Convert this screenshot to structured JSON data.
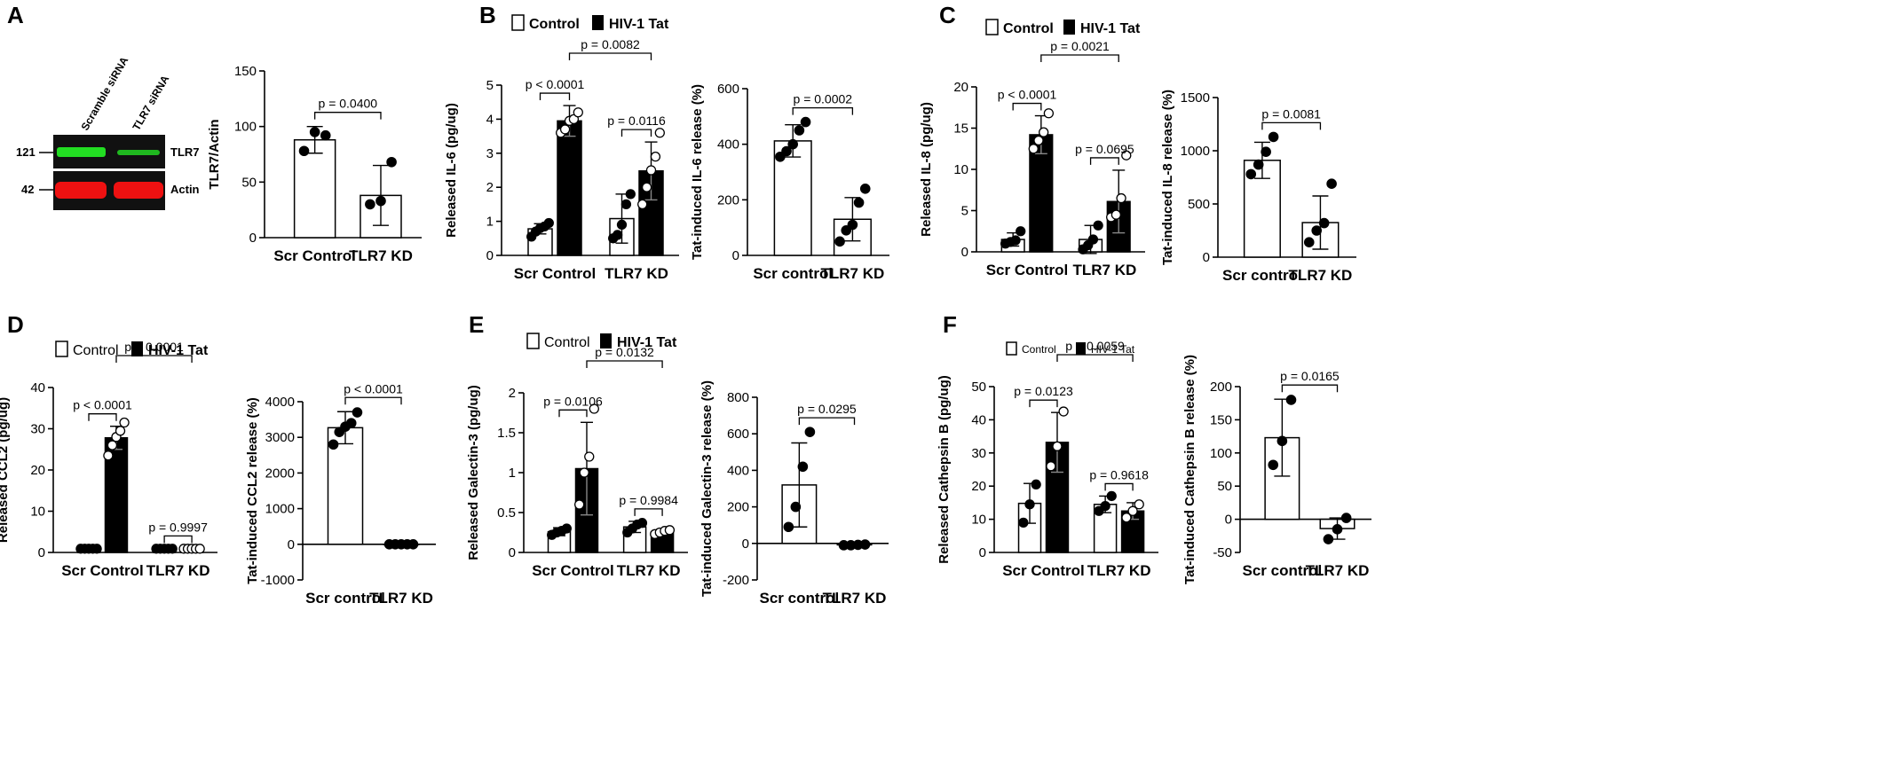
{
  "panels": {
    "A": {
      "letter": "A"
    },
    "B": {
      "letter": "B"
    },
    "C": {
      "letter": "C"
    },
    "D": {
      "letter": "D"
    },
    "E": {
      "letter": "E"
    },
    "F": {
      "letter": "F"
    }
  },
  "legend": {
    "control": "Control",
    "tat": "HIV-1 Tat"
  },
  "western_blot": {
    "lane_labels": [
      "Scramble siRNA",
      "TLR7 siRNA"
    ],
    "markers": [
      "121",
      "42"
    ],
    "band_labels": [
      "TLR7",
      "Actin"
    ],
    "colors": {
      "tlr7_band": "#22dd22",
      "actin_band": "#ee1111",
      "background": "#111111"
    }
  },
  "chart_data": [
    {
      "id": "A",
      "type": "bar",
      "ylabel": "TLR7/Actin",
      "ylim": [
        0,
        150
      ],
      "yticks": [
        0,
        50,
        100,
        150
      ],
      "categories": [
        "Scr Control",
        "TLR7 KD"
      ],
      "values": [
        88,
        38
      ],
      "errors": [
        12,
        27
      ],
      "points": [
        [
          78,
          95,
          92
        ],
        [
          30,
          33,
          68
        ]
      ],
      "point_fill": "filled",
      "sig": [
        {
          "label": "p = 0.0400",
          "from": 0,
          "to": 1
        }
      ]
    },
    {
      "id": "B1",
      "type": "bar",
      "ylabel": "Released IL-6 (pg/ug)",
      "ylim": [
        0,
        5
      ],
      "yticks": [
        0,
        1,
        2,
        3,
        4,
        5
      ],
      "groups": [
        "Scr Control",
        "TLR7 KD"
      ],
      "series": [
        {
          "name": "Control",
          "values": [
            0.78,
            1.08
          ],
          "errors": [
            0.15,
            0.72
          ],
          "points": [
            [
              0.55,
              0.7,
              0.8,
              0.85,
              0.95
            ],
            [
              0.5,
              0.6,
              0.9,
              1.5,
              1.8
            ]
          ]
        },
        {
          "name": "HIV-1 Tat",
          "values": [
            3.95,
            2.48
          ],
          "errors": [
            0.45,
            0.85
          ],
          "points": [
            [
              3.6,
              3.7,
              3.95,
              4.0,
              4.2
            ],
            [
              1.5,
              2.0,
              2.5,
              2.9,
              3.6
            ]
          ]
        }
      ],
      "sig": [
        {
          "label": "p < 0.0001",
          "from": "0-0",
          "to": "0-1",
          "level": 1
        },
        {
          "label": "p = 0.0116",
          "from": "1-0",
          "to": "1-1",
          "level": 1
        },
        {
          "label": "p = 0.0082",
          "from": "0-1",
          "to": "1-1",
          "level": 2
        }
      ]
    },
    {
      "id": "B2",
      "type": "bar",
      "ylabel": "Tat-induced IL-6 release (%)",
      "ylim": [
        0,
        600
      ],
      "yticks": [
        0,
        200,
        400,
        600
      ],
      "categories": [
        "Scr control",
        "TLR7 KD"
      ],
      "values": [
        412,
        130
      ],
      "errors": [
        58,
        78
      ],
      "points": [
        [
          355,
          375,
          400,
          450,
          480
        ],
        [
          50,
          90,
          110,
          190,
          240
        ]
      ],
      "point_fill": "filled",
      "sig": [
        {
          "label": "p = 0.0002",
          "from": 0,
          "to": 1
        }
      ]
    },
    {
      "id": "C1",
      "type": "bar",
      "ylabel": "Released IL-8 (pg/ug)",
      "ylim": [
        0,
        20
      ],
      "yticks": [
        0,
        5,
        10,
        15,
        20
      ],
      "groups": [
        "Scr Control",
        "TLR7 KD"
      ],
      "series": [
        {
          "name": "Control",
          "values": [
            1.5,
            1.5
          ],
          "errors": [
            0.8,
            1.7
          ],
          "points": [
            [
              1.0,
              1.2,
              1.4,
              2.5
            ],
            [
              0.3,
              0.8,
              1.5,
              3.2
            ]
          ]
        },
        {
          "name": "HIV-1 Tat",
          "values": [
            14.2,
            6.1
          ],
          "errors": [
            2.3,
            3.8
          ],
          "points": [
            [
              12.5,
              13.5,
              14.5,
              16.8
            ],
            [
              4.2,
              4.5,
              6.5,
              11.7
            ]
          ]
        }
      ],
      "sig": [
        {
          "label": "p < 0.0001",
          "from": "0-0",
          "to": "0-1",
          "level": 1
        },
        {
          "label": "p = 0.0695",
          "from": "1-0",
          "to": "1-1",
          "level": 1
        },
        {
          "label": "p = 0.0021",
          "from": "0-1",
          "to": "1-1",
          "level": 2
        }
      ]
    },
    {
      "id": "C2",
      "type": "bar",
      "ylabel": "Tat-induced IL-8 release (%)",
      "ylim": [
        0,
        1500
      ],
      "yticks": [
        0,
        500,
        1000,
        1500
      ],
      "categories": [
        "Scr control",
        "TLR7 KD"
      ],
      "values": [
        910,
        325
      ],
      "errors": [
        170,
        250
      ],
      "points": [
        [
          780,
          870,
          990,
          1130
        ],
        [
          140,
          250,
          320,
          690
        ]
      ],
      "point_fill": "filled",
      "sig": [
        {
          "label": "p = 0.0081",
          "from": 0,
          "to": 1
        }
      ]
    },
    {
      "id": "D1",
      "type": "bar",
      "ylabel": "Released CCL2 (pg/ug)",
      "ylim": [
        0,
        40
      ],
      "yticks": [
        0,
        10,
        20,
        30,
        40
      ],
      "groups": [
        "Scr Control",
        "TLR7 KD"
      ],
      "series": [
        {
          "name": "Control",
          "values": [
            0.9,
            0.9
          ],
          "errors": [
            0.1,
            0.1
          ],
          "points": [
            [
              0.9,
              0.9,
              0.9,
              0.9,
              0.9
            ],
            [
              0.9,
              0.9,
              0.9,
              0.9,
              0.9
            ]
          ]
        },
        {
          "name": "HIV-1 Tat",
          "values": [
            27.8,
            0.9
          ],
          "errors": [
            2.8,
            0.1
          ],
          "points": [
            [
              23.5,
              26.0,
              28.0,
              29.5,
              31.5
            ],
            [
              0.9,
              0.9,
              0.9,
              0.9,
              0.9
            ]
          ]
        }
      ],
      "sig": [
        {
          "label": "p < 0.0001",
          "from": "0-0",
          "to": "0-1",
          "level": 1
        },
        {
          "label": "p = 0.9997",
          "from": "1-0",
          "to": "1-1",
          "level": 1
        },
        {
          "label": "p < 0.0001",
          "from": "0-1",
          "to": "1-1",
          "level": 2
        }
      ]
    },
    {
      "id": "D2",
      "type": "bar",
      "ylabel": "Tat-induced CCL2 release (%)",
      "ylim": [
        -1000,
        4000
      ],
      "yticks": [
        -1000,
        0,
        1000,
        2000,
        3000,
        4000
      ],
      "categories": [
        "Scr control",
        "TLR7 KD"
      ],
      "values": [
        3270,
        0
      ],
      "errors": [
        450,
        0
      ],
      "points": [
        [
          2800,
          3150,
          3300,
          3400,
          3700
        ],
        [
          0,
          0,
          0,
          0,
          0
        ]
      ],
      "point_fill": "filled",
      "sig": [
        {
          "label": "p < 0.0001",
          "from": 0,
          "to": 1
        }
      ]
    },
    {
      "id": "E1",
      "type": "bar",
      "ylabel": "Released Galectin-3 (pg/ug)",
      "ylim": [
        0,
        2.0
      ],
      "yticks": [
        0.0,
        0.5,
        1.0,
        1.5,
        2.0
      ],
      "groups": [
        "Scr Control",
        "TLR7 KD"
      ],
      "series": [
        {
          "name": "Control",
          "values": [
            0.26,
            0.32
          ],
          "errors": [
            0.05,
            0.07
          ],
          "points": [
            [
              0.22,
              0.25,
              0.27,
              0.3
            ],
            [
              0.25,
              0.3,
              0.35,
              0.37
            ]
          ]
        },
        {
          "name": "HIV-1 Tat",
          "values": [
            1.05,
            0.26
          ],
          "errors": [
            0.58,
            0.03
          ],
          "points": [
            [
              0.6,
              1.0,
              1.2,
              1.8
            ],
            [
              0.23,
              0.25,
              0.27,
              0.28
            ]
          ]
        }
      ],
      "sig": [
        {
          "label": "p = 0.0106",
          "from": "0-0",
          "to": "0-1",
          "level": 1
        },
        {
          "label": "p = 0.9984",
          "from": "1-0",
          "to": "1-1",
          "level": 1
        },
        {
          "label": "p = 0.0132",
          "from": "0-1",
          "to": "1-1",
          "level": 2
        }
      ]
    },
    {
      "id": "E2",
      "type": "bar",
      "ylabel": "Tat-induced Galectin-3 release (%)",
      "ylim": [
        -200,
        800
      ],
      "yticks": [
        -200,
        0,
        200,
        400,
        600,
        800
      ],
      "categories": [
        "Scr control",
        "TLR7 KD"
      ],
      "values": [
        320,
        -8
      ],
      "errors": [
        230,
        5
      ],
      "points": [
        [
          90,
          200,
          420,
          610
        ],
        [
          -10,
          -10,
          -8,
          -6
        ]
      ],
      "point_fill": "filled",
      "sig": [
        {
          "label": "p = 0.0295",
          "from": 0,
          "to": 1
        }
      ]
    },
    {
      "id": "F1",
      "type": "bar",
      "ylabel": "Released Cathepsin B (pg/ug)",
      "ylim": [
        0,
        50
      ],
      "yticks": [
        0,
        10,
        20,
        30,
        40,
        50
      ],
      "groups": [
        "Scr Control",
        "TLR7 KD"
      ],
      "series": [
        {
          "name": "Control",
          "values": [
            14.8,
            14.5
          ],
          "errors": [
            6.0,
            2.5
          ],
          "points": [
            [
              9.0,
              14.5,
              20.5
            ],
            [
              12.5,
              14.0,
              17.0
            ]
          ]
        },
        {
          "name": "HIV-1 Tat",
          "values": [
            33.2,
            12.5
          ],
          "errors": [
            9.0,
            2.5
          ],
          "points": [
            [
              26.0,
              32.0,
              42.5
            ],
            [
              10.5,
              12.5,
              14.5
            ]
          ]
        }
      ],
      "sig": [
        {
          "label": "p = 0.0123",
          "from": "0-0",
          "to": "0-1",
          "level": 1
        },
        {
          "label": "p = 0.9618",
          "from": "1-0",
          "to": "1-1",
          "level": 1
        },
        {
          "label": "p = 0.0059",
          "from": "0-1",
          "to": "1-1",
          "level": 2
        }
      ]
    },
    {
      "id": "F2",
      "type": "bar",
      "ylabel": "Tat-induced Cathepsin B release (%)",
      "ylim": [
        -50,
        200
      ],
      "yticks": [
        -50,
        0,
        50,
        100,
        150,
        200
      ],
      "categories": [
        "Scr control",
        "TLR7 KD"
      ],
      "values": [
        123,
        -14
      ],
      "errors": [
        58,
        16
      ],
      "points": [
        [
          82,
          118,
          180
        ],
        [
          -30,
          -15,
          2
        ]
      ],
      "point_fill": "filled",
      "sig": [
        {
          "label": "p = 0.0165",
          "from": 0,
          "to": 1
        }
      ]
    }
  ]
}
